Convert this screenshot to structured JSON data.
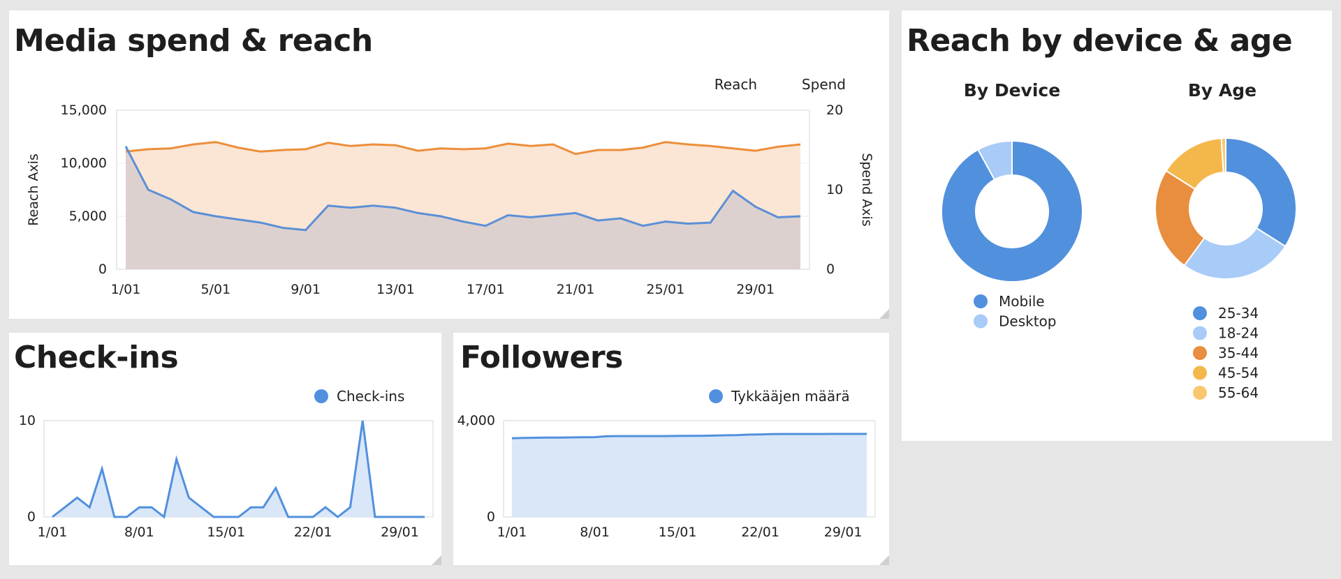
{
  "colors": {
    "reach": "#5b8fd6",
    "spend": "#ec8e3a",
    "reach_fill": "#ddd1cf",
    "spend_fill": "#fbe5d4",
    "blue": "#5190dd",
    "light_blue": "#a8cbf7",
    "orange": "#e88e3e",
    "amber": "#f4b74c",
    "yellow": "#f9c86e",
    "area_fill": "#d9e7f8"
  },
  "panels": {
    "media": {
      "title": "Media spend & reach"
    },
    "reach": {
      "title": "Reach by device & age"
    },
    "checkins": {
      "title": "Check-ins"
    },
    "followers": {
      "title": "Followers"
    }
  },
  "chart_data": [
    {
      "id": "media",
      "type": "area",
      "title": "Media spend & reach",
      "xlabel": "",
      "ylabel": "Reach Axis",
      "y2label": "Spend Axis",
      "ylim": [
        0,
        15000
      ],
      "y2lim": [
        0,
        20
      ],
      "yticks": [
        0,
        5000,
        10000,
        15000
      ],
      "ytick_labels": [
        "0",
        "5,000",
        "10,000",
        "15,000"
      ],
      "y2ticks": [
        0,
        10,
        20
      ],
      "y2tick_labels": [
        "0",
        "10",
        "20"
      ],
      "x": [
        1,
        2,
        3,
        4,
        5,
        6,
        7,
        8,
        9,
        10,
        11,
        12,
        13,
        14,
        15,
        16,
        17,
        18,
        19,
        20,
        21,
        22,
        23,
        24,
        25,
        26,
        27,
        28,
        29,
        30,
        31
      ],
      "xtick_labels": [
        "1/01",
        "5/01",
        "9/01",
        "13/01",
        "17/01",
        "21/01",
        "25/01",
        "29/01"
      ],
      "legend": [
        "Reach",
        "Spend"
      ],
      "legend_position": "top-right",
      "series": [
        {
          "name": "Reach",
          "axis": "left",
          "values": [
            11600,
            7500,
            6600,
            5400,
            5000,
            4700,
            4400,
            3900,
            3700,
            6000,
            5800,
            6000,
            5800,
            5300,
            5000,
            4500,
            4100,
            5100,
            4900,
            5100,
            5300,
            4600,
            4800,
            4100,
            4500,
            4300,
            4400,
            7400,
            5900,
            4900,
            5000
          ]
        },
        {
          "name": "Spend",
          "axis": "right",
          "values": [
            14.8,
            15.1,
            15.2,
            15.7,
            16.0,
            15.3,
            14.8,
            15.0,
            15.1,
            15.9,
            15.5,
            15.7,
            15.6,
            14.9,
            15.2,
            15.1,
            15.2,
            15.8,
            15.5,
            15.7,
            14.5,
            15.0,
            15.0,
            15.3,
            16.0,
            15.7,
            15.5,
            15.2,
            14.9,
            15.4,
            15.7
          ]
        }
      ]
    },
    {
      "id": "device",
      "type": "pie",
      "title": "By Device",
      "categories": [
        "Mobile",
        "Desktop"
      ],
      "values": [
        92,
        8
      ]
    },
    {
      "id": "age",
      "type": "pie",
      "title": "By Age",
      "categories": [
        "25-34",
        "18-24",
        "35-44",
        "45-54",
        "55-64"
      ],
      "values": [
        34,
        26,
        24,
        15,
        1
      ]
    },
    {
      "id": "checkins",
      "type": "area",
      "title": "Check-ins",
      "ylim": [
        0,
        10
      ],
      "yticks": [
        0,
        10
      ],
      "ytick_labels": [
        "0",
        "10"
      ],
      "x": [
        1,
        2,
        3,
        4,
        5,
        6,
        7,
        8,
        9,
        10,
        11,
        12,
        13,
        14,
        15,
        16,
        17,
        18,
        19,
        20,
        21,
        22,
        23,
        24,
        25,
        26,
        27,
        28,
        29,
        30,
        31
      ],
      "xtick_labels": [
        "1/01",
        "8/01",
        "15/01",
        "22/01",
        "29/01"
      ],
      "legend": [
        "Check-ins"
      ],
      "legend_position": "top-right",
      "series": [
        {
          "name": "Check-ins",
          "values": [
            0,
            1,
            2,
            1,
            5,
            0,
            0,
            1,
            1,
            0,
            6,
            2,
            1,
            0,
            0,
            0,
            1,
            1,
            3,
            0,
            0,
            0,
            1,
            0,
            1,
            10,
            0,
            0,
            0,
            0,
            0
          ]
        }
      ]
    },
    {
      "id": "followers",
      "type": "area",
      "title": "Followers",
      "ylim": [
        0,
        4000
      ],
      "yticks": [
        0,
        4000
      ],
      "ytick_labels": [
        "0",
        "4,000"
      ],
      "x": [
        1,
        2,
        3,
        4,
        5,
        6,
        7,
        8,
        9,
        10,
        11,
        12,
        13,
        14,
        15,
        16,
        17,
        18,
        19,
        20,
        21,
        22,
        23,
        24,
        25,
        26,
        27,
        28,
        29,
        30,
        31
      ],
      "xtick_labels": [
        "1/01",
        "8/01",
        "15/01",
        "22/01",
        "29/01"
      ],
      "legend": [
        "Tykkääjen määrä"
      ],
      "legend_position": "top-right",
      "series": [
        {
          "name": "Tykkääjen määrä",
          "values": [
            3270,
            3280,
            3290,
            3300,
            3300,
            3305,
            3310,
            3315,
            3350,
            3360,
            3360,
            3360,
            3360,
            3360,
            3365,
            3370,
            3370,
            3380,
            3390,
            3400,
            3420,
            3430,
            3440,
            3445,
            3445,
            3445,
            3445,
            3450,
            3450,
            3450,
            3450
          ]
        }
      ]
    }
  ]
}
